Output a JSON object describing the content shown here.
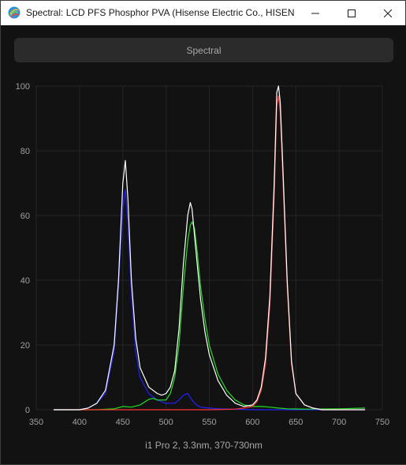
{
  "window": {
    "title": "Spectral: LCD PFS Phosphor PVA (Hisense Electric Co., HISENSE..."
  },
  "tabs": {
    "active_label": "Spectral"
  },
  "chart_data": {
    "type": "line",
    "xlim": [
      350,
      750
    ],
    "ylim": [
      0,
      100
    ],
    "x_ticks": [
      350,
      400,
      450,
      500,
      550,
      600,
      650,
      700,
      750
    ],
    "y_ticks": [
      0,
      20,
      40,
      60,
      80,
      100
    ],
    "grid": true,
    "caption": "i1 Pro 2, 3.3nm, 370-730nm",
    "series": [
      {
        "color": "#ffffff",
        "x": [
          370,
          400,
          410,
          420,
          430,
          440,
          445,
          450,
          453,
          456,
          460,
          465,
          470,
          480,
          490,
          495,
          500,
          505,
          510,
          515,
          520,
          525,
          528,
          530,
          535,
          540,
          545,
          550,
          560,
          570,
          580,
          590,
          600,
          605,
          610,
          615,
          620,
          625,
          628,
          630,
          632,
          635,
          640,
          645,
          650,
          660,
          670,
          680,
          700,
          730
        ],
        "y": [
          0,
          0,
          0.5,
          2,
          6,
          20,
          40,
          70,
          77,
          65,
          40,
          22,
          13,
          7,
          5,
          4.5,
          5,
          7,
          12,
          25,
          45,
          60,
          64,
          62,
          48,
          34,
          24,
          17,
          9,
          4.5,
          2,
          1,
          1.5,
          3,
          7,
          16,
          35,
          70,
          98,
          100,
          95,
          75,
          40,
          15,
          5,
          1.5,
          0.5,
          0,
          0,
          0
        ]
      },
      {
        "color": "#2222ff",
        "x": [
          370,
          400,
          410,
          420,
          430,
          440,
          445,
          450,
          453,
          456,
          460,
          465,
          470,
          480,
          490,
          500,
          510,
          515,
          520,
          525,
          530,
          535,
          540,
          550,
          560,
          580,
          600,
          730
        ],
        "y": [
          0,
          0,
          0.5,
          2,
          5,
          18,
          38,
          62,
          68,
          58,
          36,
          18,
          10,
          5,
          3,
          2,
          2,
          3,
          4.5,
          5,
          3,
          1.5,
          0.8,
          0.5,
          0.3,
          0.2,
          0,
          0
        ]
      },
      {
        "color": "#22e022",
        "x": [
          370,
          420,
          440,
          450,
          460,
          470,
          480,
          485,
          490,
          500,
          505,
          510,
          515,
          520,
          525,
          528,
          530,
          533,
          536,
          540,
          545,
          550,
          560,
          570,
          580,
          590,
          600,
          610,
          620,
          630,
          640,
          660,
          700,
          730
        ],
        "y": [
          0,
          0,
          0.3,
          1,
          0.8,
          1.5,
          3.2,
          3.5,
          3,
          3,
          5,
          10,
          20,
          38,
          52,
          57,
          58,
          56,
          49,
          38,
          28,
          20,
          11,
          6,
          3,
          1.5,
          1,
          1,
          0.8,
          0.5,
          0.3,
          0.2,
          0.3,
          0.5
        ]
      },
      {
        "color": "#ff3333",
        "x": [
          370,
          500,
          550,
          580,
          590,
          600,
          605,
          610,
          615,
          620,
          625,
          628,
          630,
          632,
          635,
          640,
          645,
          650,
          660,
          670,
          680,
          700,
          730
        ],
        "y": [
          0,
          0,
          0,
          0.2,
          0.5,
          1,
          2.5,
          6,
          14,
          32,
          66,
          94,
          97,
          92,
          72,
          38,
          14,
          5,
          1.5,
          0.5,
          0,
          0,
          0
        ]
      }
    ]
  }
}
